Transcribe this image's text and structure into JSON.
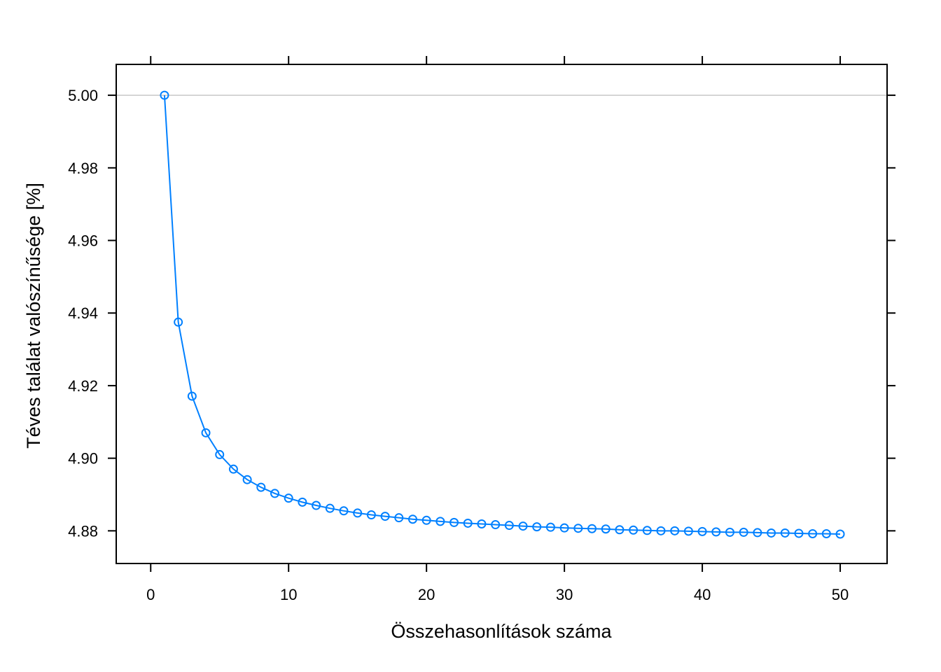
{
  "chart_data": {
    "type": "line",
    "title": "",
    "xlabel": "Összehasonlítások száma",
    "ylabel": "Téves találat valószínűsége [%]",
    "xlim": [
      -2.5,
      53.4
    ],
    "ylim": [
      4.871,
      5.0085
    ],
    "xticks": [
      0,
      10,
      20,
      30,
      40,
      50
    ],
    "yticks": [
      4.88,
      4.9,
      4.92,
      4.94,
      4.96,
      4.98,
      5.0
    ],
    "xtick_labels": [
      "0",
      "10",
      "20",
      "30",
      "40",
      "50"
    ],
    "ytick_labels": [
      "4.88",
      "4.90",
      "4.92",
      "4.94",
      "4.96",
      "4.98",
      "5.00"
    ],
    "reference_line": 5.0,
    "grid": false,
    "series": [
      {
        "color": "#0080ff",
        "marker": "open-circle",
        "x": [
          1,
          2,
          3,
          4,
          5,
          6,
          7,
          8,
          9,
          10,
          11,
          12,
          13,
          14,
          15,
          16,
          17,
          18,
          19,
          20,
          21,
          22,
          23,
          24,
          25,
          26,
          27,
          28,
          29,
          30,
          31,
          32,
          33,
          34,
          35,
          36,
          37,
          38,
          39,
          40,
          41,
          42,
          43,
          44,
          45,
          46,
          47,
          48,
          49,
          50
        ],
        "values": [
          5.0,
          4.9375,
          4.9171,
          4.907,
          4.901,
          4.897,
          4.8941,
          4.892,
          4.8903,
          4.889,
          4.8879,
          4.887,
          4.8862,
          4.8855,
          4.8849,
          4.8844,
          4.884,
          4.8836,
          4.8832,
          4.8829,
          4.8826,
          4.8823,
          4.8821,
          4.8819,
          4.8817,
          4.8815,
          4.8813,
          4.8811,
          4.881,
          4.8808,
          4.8807,
          4.8806,
          4.8805,
          4.8803,
          4.8802,
          4.8801,
          4.88,
          4.88,
          4.8799,
          4.8798,
          4.8797,
          4.8796,
          4.8796,
          4.8795,
          4.8794,
          4.8794,
          4.8793,
          4.8792,
          4.8792,
          4.8791
        ]
      }
    ]
  }
}
